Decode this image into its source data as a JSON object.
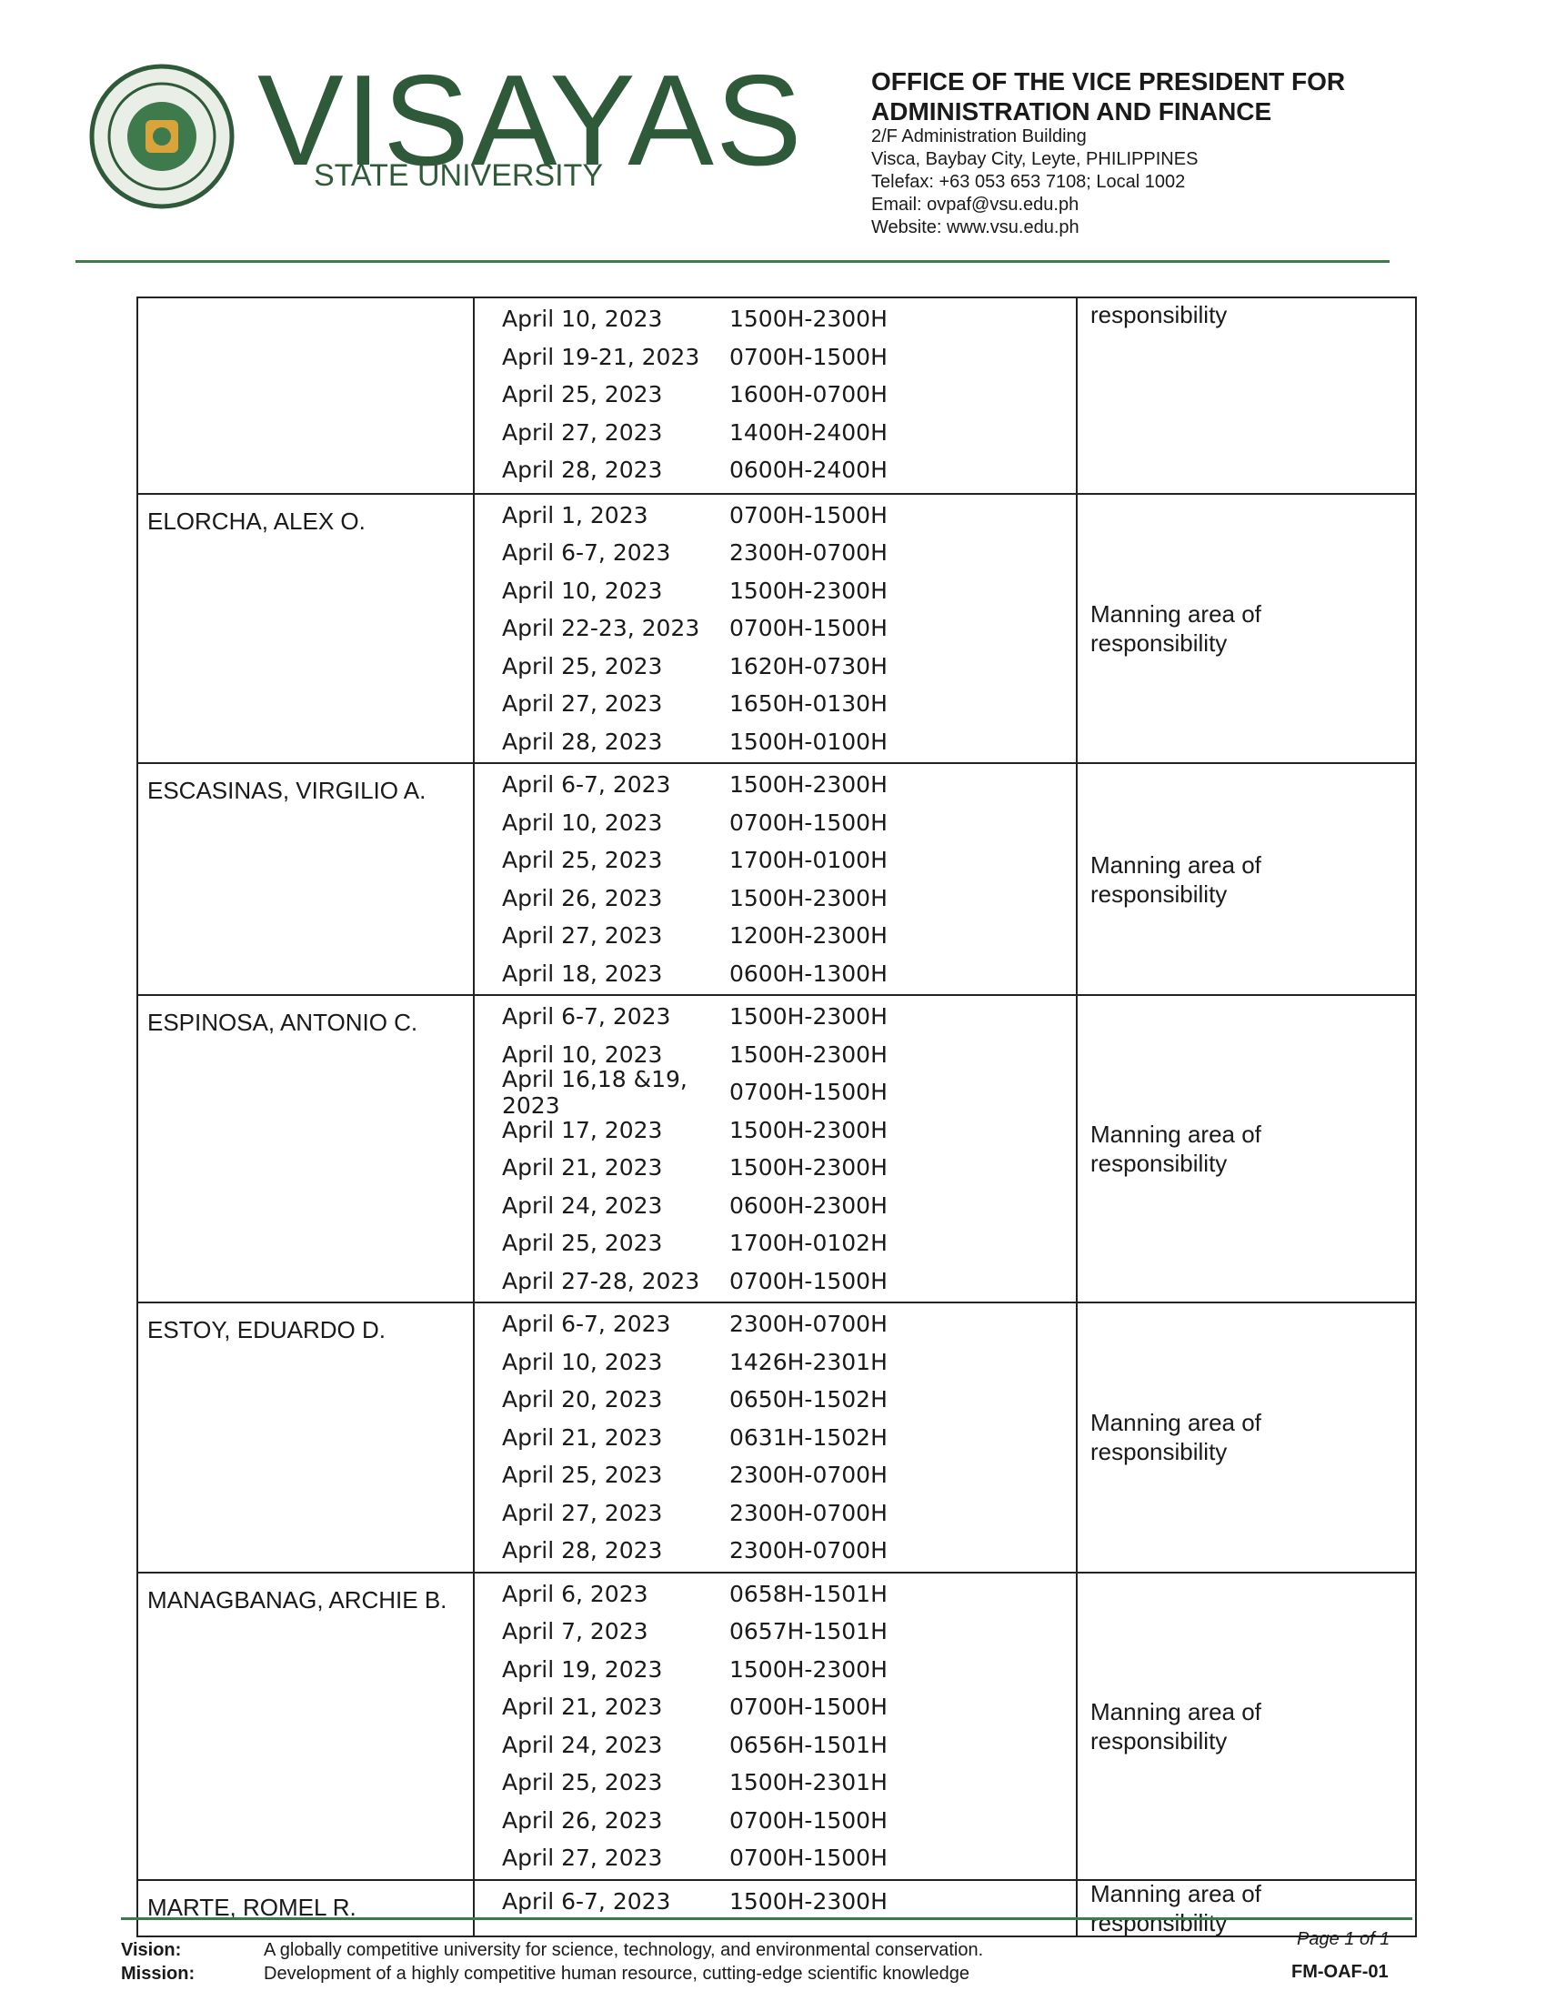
{
  "header": {
    "logo_text": "VISAYAS",
    "logo_subtext": "STATE UNIVERSITY",
    "office_line1": "OFFICE OF THE VICE PRESIDENT FOR",
    "office_line2": "ADMINISTRATION AND FINANCE",
    "address_lines": [
      "2/F Administration Building",
      "Visca, Baybay City, Leyte, PHILIPPINES",
      "Telefax: +63 053 653 7108; Local 1002",
      "Email: ovpaf@vsu.edu.ph",
      "Website: www.vsu.edu.ph"
    ]
  },
  "table": {
    "rows": [
      {
        "schedule": [
          [
            "April 10, 2023",
            "1500H-2300H"
          ],
          [
            "April 19-21, 2023",
            "0700H-1500H"
          ],
          [
            "April 25, 2023",
            "1600H-0700H"
          ],
          [
            "April 27, 2023",
            "1400H-2400H"
          ],
          [
            "April 28, 2023",
            "0600H-2400H"
          ]
        ],
        "remark": "responsibility"
      },
      {
        "name": "ELORCHA, ALEX O.",
        "schedule": [
          [
            "April 1, 2023",
            "0700H-1500H"
          ],
          [
            "April 6-7, 2023",
            "2300H-0700H"
          ],
          [
            "April 10, 2023",
            "1500H-2300H"
          ],
          [
            "April 22-23, 2023",
            "0700H-1500H"
          ],
          [
            "April 25, 2023",
            "1620H-0730H"
          ],
          [
            "April 27, 2023",
            "1650H-0130H"
          ],
          [
            "April 28, 2023",
            "1500H-0100H"
          ]
        ],
        "remark": "Manning area of responsibility"
      },
      {
        "name": "ESCASINAS, VIRGILIO A.",
        "schedule": [
          [
            "April 6-7, 2023",
            "1500H-2300H"
          ],
          [
            "April 10, 2023",
            "0700H-1500H"
          ],
          [
            "April 25, 2023",
            "1700H-0100H"
          ],
          [
            "April 26, 2023",
            "1500H-2300H"
          ],
          [
            "April 27, 2023",
            "1200H-2300H"
          ],
          [
            "April 18, 2023",
            "0600H-1300H"
          ]
        ],
        "remark": "Manning area of responsibility"
      },
      {
        "name": "ESPINOSA, ANTONIO C.",
        "schedule": [
          [
            "April 6-7, 2023",
            "1500H-2300H"
          ],
          [
            "April 10, 2023",
            "1500H-2300H"
          ],
          [
            "April 16,18 &19, 2023",
            "0700H-1500H"
          ],
          [
            "April 17, 2023",
            "1500H-2300H"
          ],
          [
            "April 21, 2023",
            "1500H-2300H"
          ],
          [
            "April 24, 2023",
            "0600H-2300H"
          ],
          [
            "April 25, 2023",
            "1700H-0102H"
          ],
          [
            "April 27-28, 2023",
            "0700H-1500H"
          ]
        ],
        "remark": "Manning area of responsibility"
      },
      {
        "name": "ESTOY, EDUARDO D.",
        "schedule": [
          [
            "April 6-7, 2023",
            "2300H-0700H"
          ],
          [
            "April 10, 2023",
            "1426H-2301H"
          ],
          [
            "April 20, 2023",
            "0650H-1502H"
          ],
          [
            "April 21, 2023",
            "0631H-1502H"
          ],
          [
            "April 25, 2023",
            "2300H-0700H"
          ],
          [
            "April 27, 2023",
            "2300H-0700H"
          ],
          [
            "April 28, 2023",
            "2300H-0700H"
          ]
        ],
        "remark": "Manning area of responsibility"
      },
      {
        "name": "MANAGBANAG, ARCHIE B.",
        "schedule": [
          [
            "April 6, 2023",
            "0658H-1501H"
          ],
          [
            "April 7, 2023",
            "0657H-1501H"
          ],
          [
            "April 19, 2023",
            "1500H-2300H"
          ],
          [
            "April 21, 2023",
            "0700H-1500H"
          ],
          [
            "April 24, 2023",
            "0656H-1501H"
          ],
          [
            "April 25, 2023",
            "1500H-2301H"
          ],
          [
            "April 26, 2023",
            "0700H-1500H"
          ],
          [
            "April 27, 2023",
            "0700H-1500H"
          ]
        ],
        "remark": "Manning area of responsibility"
      },
      {
        "name": "MARTE, ROMEL R.",
        "schedule": [
          [
            "April 6-7, 2023",
            "1500H-2300H"
          ]
        ],
        "remark": "Manning area of responsibility"
      }
    ]
  },
  "footer": {
    "vision_label": "Vision:",
    "vision": "A globally competitive university for science, technology, and environmental conservation.",
    "mission_label": "Mission:",
    "mission": "Development of a highly competitive human resource, cutting-edge scientific knowledge",
    "page": "Page 1 of 1",
    "form_code": "FM-OAF-01"
  }
}
